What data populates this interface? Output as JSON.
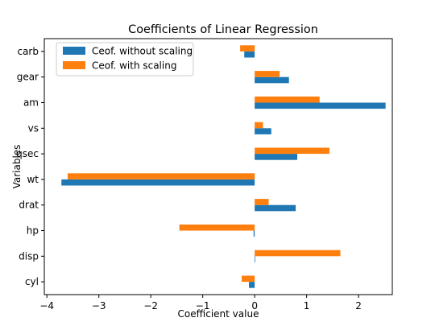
{
  "chart_data": {
    "type": "bar",
    "orientation": "horizontal",
    "title": "Coefficients of Linear Regression",
    "xlabel": "Coefficient value",
    "ylabel": "Variables",
    "categories": [
      "cyl",
      "disp",
      "hp",
      "drat",
      "wt",
      "qsec",
      "vs",
      "am",
      "gear",
      "carb"
    ],
    "series": [
      {
        "name": "Ceof. without scaling",
        "color": "#1f77b4",
        "values": [
          -0.11,
          0.01,
          -0.02,
          0.79,
          -3.72,
          0.82,
          0.32,
          2.52,
          0.66,
          -0.2
        ]
      },
      {
        "name": "Ceof. with scaling",
        "color": "#ff7f0e",
        "values": [
          -0.25,
          1.65,
          -1.45,
          0.27,
          -3.6,
          1.44,
          0.16,
          1.25,
          0.48,
          -0.28
        ]
      }
    ],
    "xlim": [
      -4.05,
      2.65
    ],
    "xticks": [
      -4,
      -3,
      -2,
      -1,
      0,
      1,
      2
    ],
    "xtick_labels": [
      "−4",
      "−3",
      "−2",
      "−1",
      "0",
      "1",
      "2"
    ],
    "grid": false,
    "legend_position": "top-left"
  }
}
